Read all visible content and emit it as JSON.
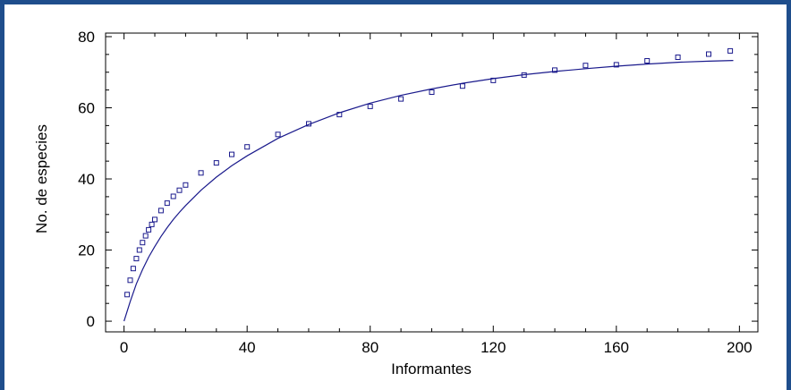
{
  "chart_data": {
    "type": "scatter",
    "title": "",
    "xlabel": "Informantes",
    "ylabel": "No. de especies",
    "xlim": [
      -6,
      206
    ],
    "ylim": [
      -3,
      81
    ],
    "x_ticks": [
      0,
      40,
      80,
      120,
      160,
      200
    ],
    "y_ticks": [
      0,
      20,
      40,
      60,
      80
    ],
    "grid": false,
    "series": [
      {
        "marker": "square",
        "color": "#1a1a8c",
        "x": [
          1,
          2,
          3,
          4,
          5,
          6,
          7,
          8,
          9,
          10,
          12,
          14,
          16,
          18,
          20,
          25,
          30,
          35,
          40,
          50,
          60,
          70,
          80,
          90,
          100,
          110,
          120,
          130,
          140,
          150,
          160,
          170,
          180,
          190,
          197
        ],
        "y": [
          7.5,
          11.5,
          14.8,
          17.6,
          20,
          22.1,
          24,
          25.7,
          27.2,
          28.6,
          31.1,
          33.2,
          35.1,
          36.8,
          38.3,
          41.7,
          44.5,
          46.9,
          49,
          52.5,
          55.5,
          58.1,
          60.4,
          62.5,
          64.4,
          66.1,
          67.7,
          69.2,
          70.6,
          71.9,
          72.1,
          73.2,
          74.2,
          75.1,
          76
        ]
      },
      {
        "marker": "line",
        "color": "#1a1a8c",
        "x": [
          0,
          2,
          4,
          6,
          8,
          10,
          12,
          14,
          16,
          18,
          20,
          25,
          30,
          35,
          40,
          50,
          60,
          70,
          80,
          90,
          100,
          110,
          120,
          130,
          140,
          150,
          160,
          170,
          180,
          190,
          198
        ],
        "y": [
          0,
          5.5,
          10.5,
          14.5,
          18,
          21,
          23.8,
          26.3,
          28.6,
          30.6,
          32.5,
          36.8,
          40.5,
          43.7,
          46.5,
          51.4,
          55.3,
          58.6,
          61.3,
          63.5,
          65.3,
          66.9,
          68.2,
          69.3,
          70.2,
          71,
          71.7,
          72.3,
          72.8,
          73.1,
          73.3
        ]
      }
    ]
  }
}
